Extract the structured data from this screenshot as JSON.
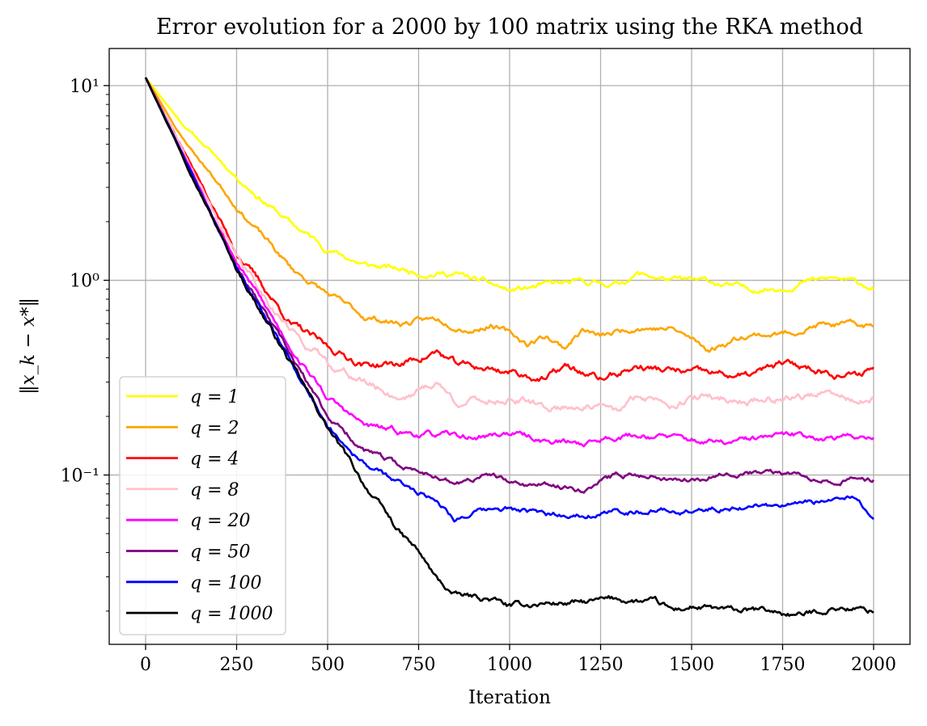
{
  "chart_data": {
    "type": "line",
    "title": "Error evolution for a 2000 by 100 matrix using the RKA method",
    "xlabel": "Iteration",
    "ylabel": "‖x_k − x*‖",
    "y_scale": "log",
    "grid": true,
    "legend_position": "lower-left",
    "xlim": [
      -100,
      2100
    ],
    "ylim": [
      0.0135,
      15.5
    ],
    "x_ticks": [
      0,
      250,
      500,
      750,
      1000,
      1250,
      1500,
      1750,
      2000
    ],
    "x_tick_labels": [
      "0",
      "250",
      "500",
      "750",
      "1000",
      "1250",
      "1500",
      "1750",
      "2000"
    ],
    "y_ticks": [
      10,
      1,
      0.1
    ],
    "y_tick_labels": [
      "10¹",
      "10⁰",
      "10⁻¹"
    ],
    "series": [
      {
        "name": "q = 1",
        "color": "#ffff00",
        "noise": 0.02,
        "seed": 11,
        "points": [
          [
            0,
            11
          ],
          [
            100,
            6.4
          ],
          [
            250,
            3.4
          ],
          [
            400,
            1.95
          ],
          [
            500,
            1.45
          ],
          [
            600,
            1.2
          ],
          [
            750,
            1.1
          ],
          [
            850,
            1.08
          ],
          [
            950,
            0.95
          ],
          [
            1000,
            0.88
          ],
          [
            1100,
            0.94
          ],
          [
            1200,
            0.97
          ],
          [
            1300,
            0.96
          ],
          [
            1350,
            1.08
          ],
          [
            1450,
            1.0
          ],
          [
            1550,
            0.98
          ],
          [
            1650,
            0.9
          ],
          [
            1750,
            0.92
          ],
          [
            1800,
            0.98
          ],
          [
            1900,
            1.02
          ],
          [
            2000,
            0.92
          ]
        ]
      },
      {
        "name": "q = 2",
        "color": "#ffa500",
        "noise": 0.02,
        "seed": 23,
        "points": [
          [
            0,
            11
          ],
          [
            100,
            5.4
          ],
          [
            250,
            2.4
          ],
          [
            400,
            1.15
          ],
          [
            500,
            0.85
          ],
          [
            600,
            0.65
          ],
          [
            700,
            0.6
          ],
          [
            800,
            0.63
          ],
          [
            900,
            0.56
          ],
          [
            950,
            0.6
          ],
          [
            1050,
            0.47
          ],
          [
            1100,
            0.52
          ],
          [
            1150,
            0.45
          ],
          [
            1200,
            0.56
          ],
          [
            1250,
            0.51
          ],
          [
            1350,
            0.58
          ],
          [
            1450,
            0.56
          ],
          [
            1550,
            0.44
          ],
          [
            1650,
            0.53
          ],
          [
            1750,
            0.53
          ],
          [
            1850,
            0.59
          ],
          [
            2000,
            0.58
          ]
        ]
      },
      {
        "name": "q = 4",
        "color": "#ff0000",
        "noise": 0.024,
        "seed": 37,
        "points": [
          [
            0,
            11
          ],
          [
            250,
            1.4
          ],
          [
            400,
            0.6
          ],
          [
            500,
            0.45
          ],
          [
            600,
            0.37
          ],
          [
            700,
            0.37
          ],
          [
            800,
            0.43
          ],
          [
            850,
            0.37
          ],
          [
            950,
            0.35
          ],
          [
            1000,
            0.34
          ],
          [
            1100,
            0.31
          ],
          [
            1150,
            0.36
          ],
          [
            1250,
            0.31
          ],
          [
            1350,
            0.36
          ],
          [
            1450,
            0.34
          ],
          [
            1550,
            0.33
          ],
          [
            1650,
            0.32
          ],
          [
            1750,
            0.37
          ],
          [
            1850,
            0.35
          ],
          [
            1950,
            0.32
          ],
          [
            2000,
            0.36
          ]
        ]
      },
      {
        "name": "q = 8",
        "color": "#ffc0cb",
        "noise": 0.026,
        "seed": 41,
        "points": [
          [
            0,
            11
          ],
          [
            250,
            1.3
          ],
          [
            400,
            0.55
          ],
          [
            500,
            0.38
          ],
          [
            600,
            0.3
          ],
          [
            700,
            0.25
          ],
          [
            800,
            0.3
          ],
          [
            850,
            0.24
          ],
          [
            950,
            0.24
          ],
          [
            1000,
            0.25
          ],
          [
            1100,
            0.22
          ],
          [
            1200,
            0.23
          ],
          [
            1300,
            0.21
          ],
          [
            1350,
            0.25
          ],
          [
            1450,
            0.24
          ],
          [
            1550,
            0.25
          ],
          [
            1650,
            0.24
          ],
          [
            1750,
            0.25
          ],
          [
            1850,
            0.26
          ],
          [
            1950,
            0.24
          ],
          [
            2000,
            0.24
          ]
        ]
      },
      {
        "name": "q = 20",
        "color": "#ff00ff",
        "noise": 0.02,
        "seed": 53,
        "points": [
          [
            0,
            11
          ],
          [
            250,
            1.25
          ],
          [
            400,
            0.45
          ],
          [
            500,
            0.25
          ],
          [
            600,
            0.18
          ],
          [
            700,
            0.165
          ],
          [
            800,
            0.16
          ],
          [
            900,
            0.155
          ],
          [
            1000,
            0.165
          ],
          [
            1100,
            0.15
          ],
          [
            1200,
            0.145
          ],
          [
            1300,
            0.16
          ],
          [
            1400,
            0.16
          ],
          [
            1500,
            0.15
          ],
          [
            1600,
            0.145
          ],
          [
            1700,
            0.155
          ],
          [
            1800,
            0.16
          ],
          [
            1900,
            0.155
          ],
          [
            2000,
            0.16
          ]
        ]
      },
      {
        "name": "q = 50",
        "color": "#800080",
        "noise": 0.018,
        "seed": 67,
        "points": [
          [
            0,
            11
          ],
          [
            250,
            1.2
          ],
          [
            400,
            0.4
          ],
          [
            500,
            0.2
          ],
          [
            600,
            0.135
          ],
          [
            700,
            0.11
          ],
          [
            800,
            0.1
          ],
          [
            850,
            0.09
          ],
          [
            950,
            0.1
          ],
          [
            1000,
            0.09
          ],
          [
            1100,
            0.088
          ],
          [
            1200,
            0.085
          ],
          [
            1300,
            0.1
          ],
          [
            1400,
            0.1
          ],
          [
            1500,
            0.095
          ],
          [
            1600,
            0.105
          ],
          [
            1700,
            0.102
          ],
          [
            1800,
            0.1
          ],
          [
            1900,
            0.095
          ],
          [
            2000,
            0.095
          ]
        ]
      },
      {
        "name": "q = 100",
        "color": "#0000ff",
        "noise": 0.018,
        "seed": 79,
        "points": [
          [
            0,
            11
          ],
          [
            250,
            1.18
          ],
          [
            400,
            0.38
          ],
          [
            500,
            0.18
          ],
          [
            600,
            0.115
          ],
          [
            700,
            0.09
          ],
          [
            800,
            0.075
          ],
          [
            850,
            0.06
          ],
          [
            900,
            0.064
          ],
          [
            1000,
            0.067
          ],
          [
            1100,
            0.062
          ],
          [
            1200,
            0.063
          ],
          [
            1300,
            0.065
          ],
          [
            1400,
            0.066
          ],
          [
            1500,
            0.065
          ],
          [
            1600,
            0.068
          ],
          [
            1700,
            0.07
          ],
          [
            1800,
            0.07
          ],
          [
            1900,
            0.075
          ],
          [
            1950,
            0.075
          ],
          [
            2000,
            0.062
          ]
        ]
      },
      {
        "name": "q = 1000",
        "color": "#000000",
        "noise": 0.02,
        "seed": 97,
        "points": [
          [
            0,
            11
          ],
          [
            250,
            1.15
          ],
          [
            400,
            0.37
          ],
          [
            500,
            0.175
          ],
          [
            600,
            0.09
          ],
          [
            700,
            0.05
          ],
          [
            750,
            0.04
          ],
          [
            800,
            0.029
          ],
          [
            850,
            0.024
          ],
          [
            950,
            0.023
          ],
          [
            1000,
            0.021
          ],
          [
            1100,
            0.022
          ],
          [
            1200,
            0.022
          ],
          [
            1300,
            0.023
          ],
          [
            1400,
            0.022
          ],
          [
            1450,
            0.02
          ],
          [
            1500,
            0.021
          ],
          [
            1600,
            0.02
          ],
          [
            1700,
            0.02
          ],
          [
            1800,
            0.019
          ],
          [
            1900,
            0.021
          ],
          [
            2000,
            0.02
          ]
        ]
      }
    ]
  }
}
